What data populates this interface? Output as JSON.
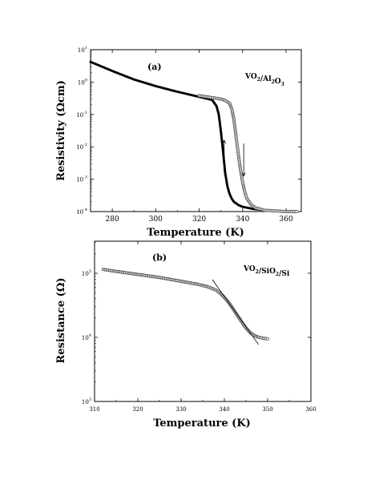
{
  "chart_data": [
    {
      "type": "scatter",
      "panel_label": "(a)",
      "sample_label": {
        "parts": [
          [
            "VO",
            false
          ],
          [
            "2",
            true
          ],
          [
            "/Al",
            false
          ],
          [
            "2",
            true
          ],
          [
            "O",
            false
          ],
          [
            "3",
            true
          ]
        ]
      },
      "xlabel": "Temperature (K)",
      "ylabel": "Resistivity (Ωcm)",
      "xlim": [
        270,
        367
      ],
      "ylim_log10": [
        -4,
        1
      ],
      "log_y": true,
      "x_ticks": [
        280,
        300,
        320,
        340,
        360
      ],
      "x_tick_labels": [
        "280",
        "300",
        "320",
        "340",
        "360"
      ],
      "y_tick_exponents": [
        -4,
        -3,
        -2,
        -1,
        0,
        1
      ],
      "y_tick_labels": [
        [
          "10",
          "-4"
        ],
        [
          "10",
          "-3"
        ],
        [
          "10",
          "-2"
        ],
        [
          "10",
          "-1"
        ],
        [
          "10",
          "0"
        ],
        [
          "10",
          "1"
        ]
      ],
      "series": [
        {
          "style": "filled",
          "x": [
            270,
            280,
            290,
            300,
            310,
            320,
            326,
            328,
            329,
            330,
            331,
            332,
            333,
            334,
            335,
            336,
            338,
            340,
            345,
            350,
            355,
            360,
            365
          ],
          "y": [
            4.2,
            2.2,
            1.2,
            0.75,
            0.5,
            0.35,
            0.28,
            0.18,
            0.1,
            0.03,
            0.007,
            0.0015,
            0.0006,
            0.00035,
            0.00025,
            0.0002,
            0.00016,
            0.00014,
            0.00012,
            0.00011,
            0.000105,
            0.0001,
            0.0001
          ]
        },
        {
          "style": "open",
          "x": [
            320,
            326,
            330,
            332,
            334,
            335,
            336,
            337,
            338,
            339,
            340,
            341,
            342,
            344,
            346,
            350,
            355,
            360,
            365
          ],
          "y": [
            0.38,
            0.33,
            0.3,
            0.27,
            0.22,
            0.15,
            0.07,
            0.02,
            0.006,
            0.002,
            0.0008,
            0.0004,
            0.00025,
            0.00016,
            0.00013,
            0.00011,
            0.000105,
            0.0001,
            0.0001
          ]
        }
      ],
      "arrows": [
        "cooling-up",
        "heating-down"
      ]
    },
    {
      "type": "scatter",
      "panel_label": "(b)",
      "sample_label": {
        "parts": [
          [
            "VO",
            false
          ],
          [
            "2",
            true
          ],
          [
            "/SiO",
            false
          ],
          [
            "2",
            true
          ],
          [
            "/Si",
            false
          ]
        ]
      },
      "xlabel": "Temperature (K)",
      "ylabel": "Resistance (Ω)",
      "xlim": [
        310,
        360
      ],
      "ylim_log10": [
        3,
        5.5
      ],
      "log_y": true,
      "x_ticks": [
        310,
        320,
        330,
        340,
        350,
        360
      ],
      "x_tick_labels": [
        "310",
        "320",
        "330",
        "340",
        "350",
        "360"
      ],
      "y_tick_exponents": [
        3,
        4,
        5
      ],
      "y_tick_labels": [
        [
          "10",
          "3"
        ],
        [
          "10",
          "4"
        ],
        [
          "10",
          "5"
        ]
      ],
      "series": [
        {
          "style": "open",
          "x": [
            312,
            315,
            320,
            325,
            330,
            334,
            336,
            338,
            339,
            340,
            341,
            342,
            343,
            344,
            345,
            346,
            347,
            348,
            349,
            350
          ],
          "y": [
            115000,
            107000,
            96000,
            86000,
            75000,
            67000,
            62000,
            55000,
            49000,
            42000,
            35000,
            28000,
            22000,
            17500,
            14000,
            11800,
            10600,
            10000,
            9700,
            9500
          ]
        }
      ],
      "fit_line": {
        "x": [
          337.2,
          347.9
        ],
        "y": [
          80000,
          7700
        ]
      }
    }
  ]
}
